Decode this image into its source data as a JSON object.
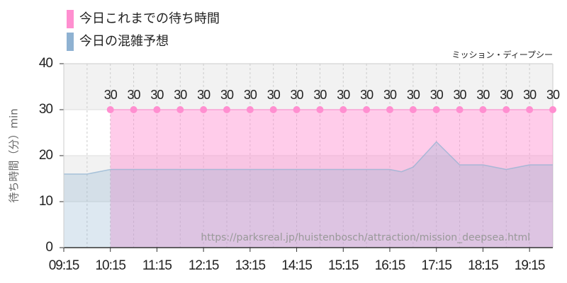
{
  "chart_data": {
    "type": "area",
    "subtitle": "ミッション・ディープシー",
    "y_label": "待ち時間（分）min",
    "annotation": "https://parksreal.jp/huistenbosch/attraction/mission_deepsea.html",
    "xlim": [
      "09:15",
      "19:45"
    ],
    "xticks": [
      "09:15",
      "10:15",
      "11:15",
      "12:15",
      "13:15",
      "14:15",
      "15:15",
      "16:15",
      "17:15",
      "18:15",
      "19:15"
    ],
    "ylim": [
      0,
      40
    ],
    "yticks": [
      0,
      10,
      20,
      30,
      40
    ],
    "grid": true,
    "legend": "top-left",
    "series": [
      {
        "name": "今日これまでの待ち時間",
        "color": "#ff8fd0",
        "x": [
          "10:15",
          "10:45",
          "11:15",
          "11:45",
          "12:15",
          "12:45",
          "13:15",
          "13:45",
          "14:15",
          "14:45",
          "15:15",
          "15:45",
          "16:15",
          "16:45",
          "17:15",
          "17:45",
          "18:15",
          "18:45",
          "19:15",
          "19:45"
        ],
        "values": [
          30,
          30,
          30,
          30,
          30,
          30,
          30,
          30,
          30,
          30,
          30,
          30,
          30,
          30,
          30,
          30,
          30,
          30,
          30,
          30
        ]
      },
      {
        "name": "今日の混雑予想",
        "color": "#8fb2d2",
        "x": [
          "09:15",
          "09:45",
          "10:15",
          "10:45",
          "11:15",
          "11:45",
          "12:15",
          "12:45",
          "13:15",
          "13:45",
          "14:15",
          "14:45",
          "15:15",
          "15:45",
          "16:15",
          "16:30",
          "16:45",
          "17:15",
          "17:45",
          "18:15",
          "18:45",
          "19:15",
          "19:45"
        ],
        "values": [
          16,
          16,
          17,
          17,
          17,
          17,
          17,
          17,
          17,
          17,
          17,
          17,
          17,
          17,
          17,
          16.5,
          17.5,
          23,
          18,
          18,
          17,
          18,
          18
        ]
      }
    ]
  }
}
